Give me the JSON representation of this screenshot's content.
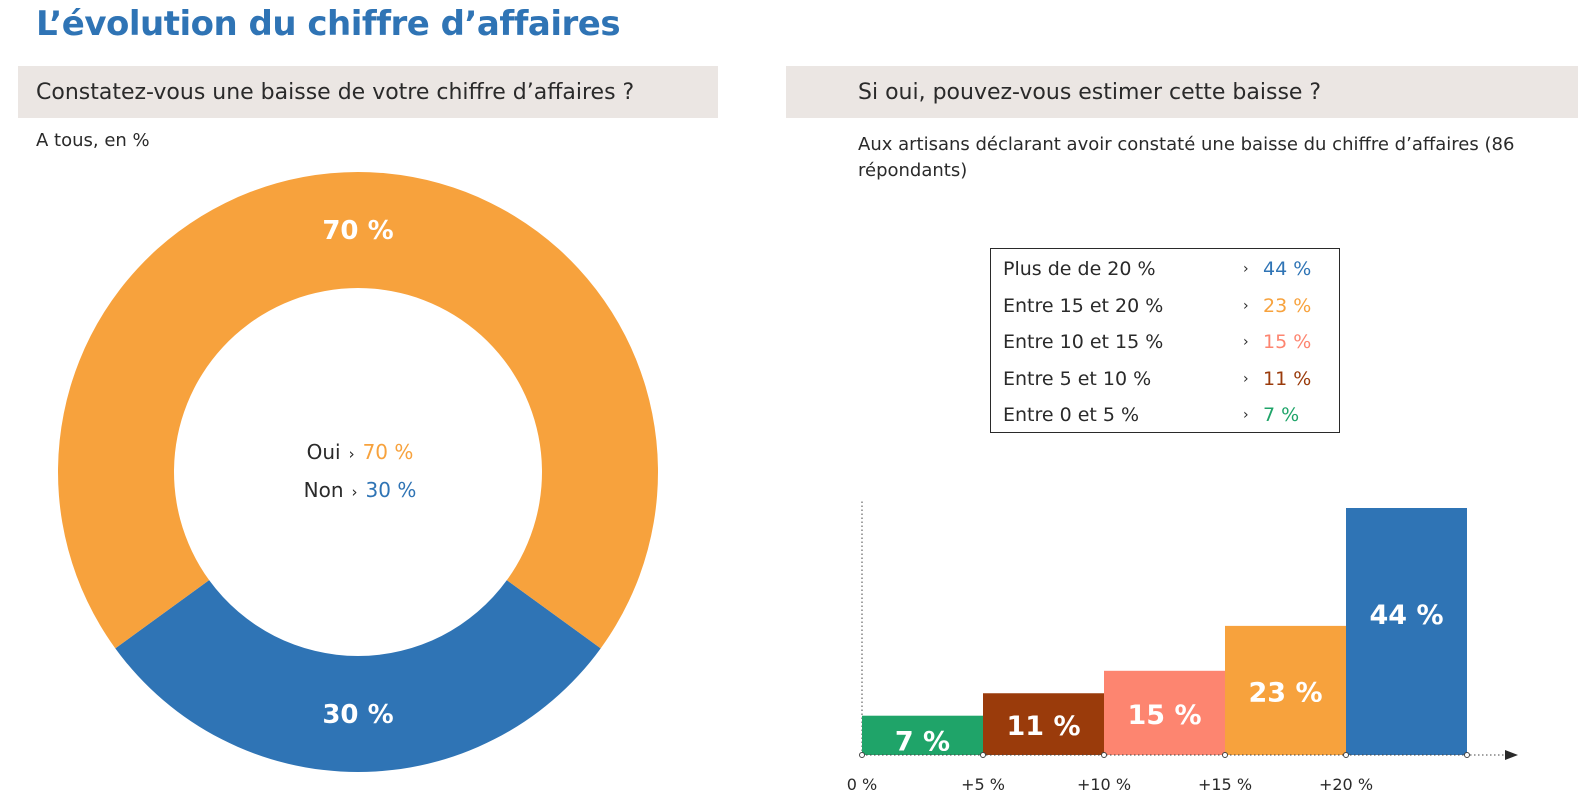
{
  "page": {
    "title": "L’évolution du chiffre d’affaires"
  },
  "left_panel": {
    "header": "Constatez-vous une baisse de votre chiffre d’affaires ?",
    "subtitle": "A tous, en %"
  },
  "right_panel": {
    "header": "Si oui, pouvez-vous estimer cette baisse ?",
    "subtitle": "Aux artisans déclarant avoir constaté une baisse du chiffre d’affaires (86 répondants)"
  },
  "arrow_glyph": "›",
  "chart_data": [
    {
      "type": "pie",
      "variant": "donut",
      "slices": [
        {
          "label": "Oui",
          "value": 70,
          "value_label": "70 %",
          "color": "#f7a23d"
        },
        {
          "label": "Non",
          "value": 30,
          "value_label": "30 %",
          "color": "#2f74b5"
        }
      ]
    },
    {
      "type": "bar",
      "categories": [
        "Entre 0 et 5 %",
        "Entre 5 et 10 %",
        "Entre 10 et 15 %",
        "Entre 15 et 20 %",
        "Plus de de 20 %"
      ],
      "values": [
        7,
        11,
        15,
        23,
        44
      ],
      "value_labels": [
        "7 %",
        "11 %",
        "15 %",
        "23 %",
        "44 %"
      ],
      "colors": [
        "#1fa469",
        "#9a3b0b",
        "#fd8570",
        "#f7a23d",
        "#2f74b5"
      ],
      "x_ticks": [
        "0 %",
        "+5 %",
        "+10 %",
        "+15 %",
        "+20 %"
      ],
      "ylim": [
        0,
        44
      ],
      "legend": [
        {
          "label": "Plus de de 20 %",
          "value": "44 %",
          "color": "#2f74b5"
        },
        {
          "label": "Entre 15 et 20 %",
          "value": "23 %",
          "color": "#f7a23d"
        },
        {
          "label": "Entre 10 et 15 %",
          "value": "15 %",
          "color": "#fd8570"
        },
        {
          "label": "Entre 5 et 10 %",
          "value": "11 %",
          "color": "#9a3b0b"
        },
        {
          "label": "Entre 0 et 5 %",
          "value": "7 %",
          "color": "#1fa469"
        }
      ]
    }
  ]
}
